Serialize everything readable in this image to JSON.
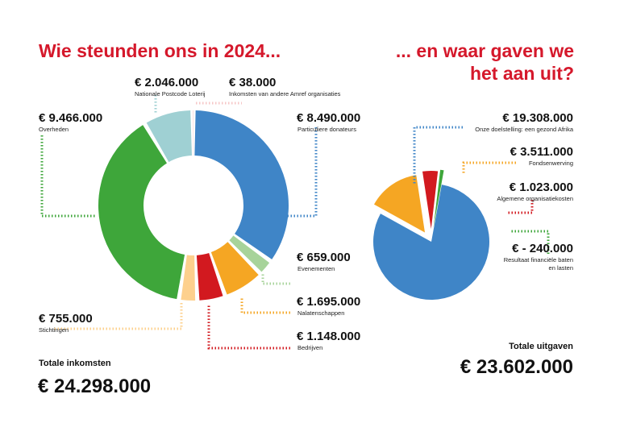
{
  "left_title": "Wie steunden ons in 2024...",
  "right_title_line1": "... en waar gaven we",
  "right_title_line2": "het aan uit?",
  "totals": {
    "income_label": "Totale inkomsten",
    "income_value": "€ 24.298.000",
    "expense_label": "Totale uitgaven",
    "expense_value": "€ 23.602.000"
  },
  "colors": {
    "title": "#d5182b",
    "blue": "#3f85c7",
    "light_green": "#a7d39a",
    "orange": "#f5a623",
    "red": "#d2191f",
    "peach": "#fdd08d",
    "green": "#3ea63a",
    "teal": "#9fd0d3",
    "pink": "#f6c6c6"
  },
  "chart_data": [
    {
      "type": "pie",
      "subtype": "donut",
      "title": "Wie steunden ons in 2024...",
      "slices": [
        {
          "label": "Particuliere donateurs",
          "value_label": "€ 8.490.000",
          "value": 8490000,
          "color": "#3f85c7"
        },
        {
          "label": "Evenementen",
          "value_label": "€ 659.000",
          "value": 659000,
          "color": "#a7d39a"
        },
        {
          "label": "Nalatenschappen",
          "value_label": "€ 1.695.000",
          "value": 1695000,
          "color": "#f5a623"
        },
        {
          "label": "Bedrijven",
          "value_label": "€ 1.148.000",
          "value": 1148000,
          "color": "#d2191f"
        },
        {
          "label": "Stichtingen",
          "value_label": "€ 755.000",
          "value": 755000,
          "color": "#fdd08d"
        },
        {
          "label": "Overheden",
          "value_label": "€ 9.466.000",
          "value": 9466000,
          "color": "#3ea63a"
        },
        {
          "label": "Nationale Postcode Loterij",
          "value_label": "€ 2.046.000",
          "value": 2046000,
          "color": "#9fd0d3"
        },
        {
          "label": "Inkomsten van andere Amref organisaties",
          "value_label": "€ 38.000",
          "value": 38000,
          "color": "#f6c6c6"
        }
      ],
      "total_label": "Totale inkomsten",
      "total": "€ 24.298.000"
    },
    {
      "type": "pie",
      "title": "... en waar gaven we het aan uit?",
      "slices": [
        {
          "label": "Onze doelstelling: een gezond Afrika",
          "value_label": "€ 19.308.000",
          "value": 19308000,
          "color": "#3f85c7"
        },
        {
          "label": "Fondsenwerving",
          "value_label": "€ 3.511.000",
          "value": 3511000,
          "color": "#f5a623"
        },
        {
          "label": "Algemene organisatiekosten",
          "value_label": "€ 1.023.000",
          "value": 1023000,
          "color": "#d2191f"
        },
        {
          "label": "Resultaat financiële baten en lasten",
          "value_label": "€ - 240.000",
          "value": -240000,
          "color": "#3ea63a"
        }
      ],
      "total_label": "Totale uitgaven",
      "total": "€ 23.602.000"
    }
  ]
}
